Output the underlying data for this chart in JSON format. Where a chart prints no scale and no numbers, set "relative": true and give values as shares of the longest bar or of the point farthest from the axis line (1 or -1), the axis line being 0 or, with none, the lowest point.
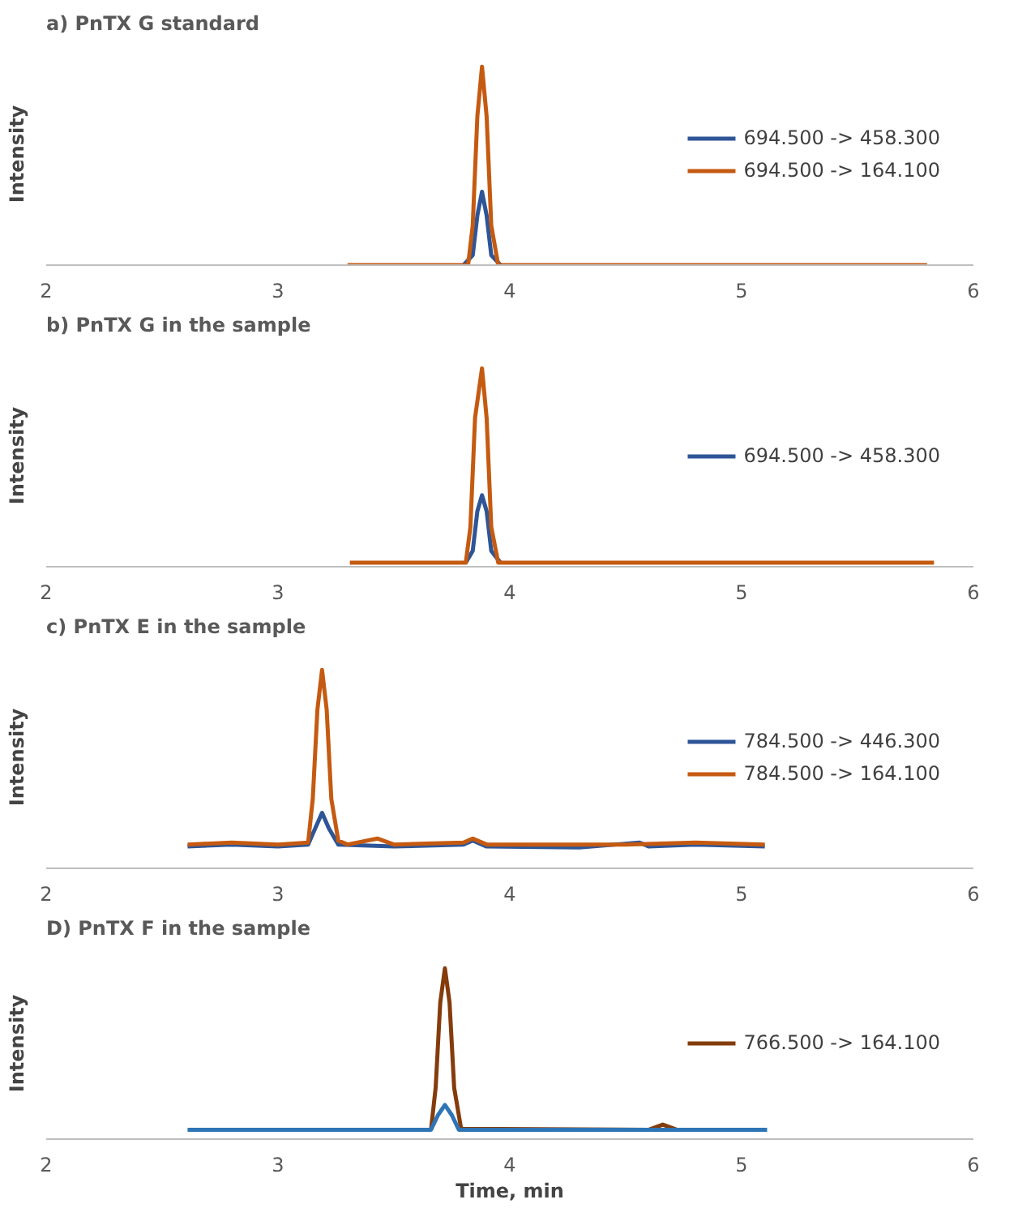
{
  "chart_data": [
    {
      "type": "line",
      "title": "a)  PnTX G standard",
      "ylabel": "Intensity",
      "xlim": [
        2,
        6
      ],
      "xticks": [
        2,
        3,
        4,
        5,
        6
      ],
      "relative": true,
      "legend": "right",
      "grid": false,
      "series": [
        {
          "name": "694.500 -> 458.300",
          "color": "#2e5597",
          "x": [
            3.8,
            3.84,
            3.86,
            3.88,
            3.9,
            3.92,
            3.96
          ],
          "values": [
            0,
            0.05,
            0.25,
            0.37,
            0.25,
            0.05,
            0
          ]
        },
        {
          "name": "694.500 -> 164.100",
          "color": "#c55a11",
          "x": [
            3.3,
            3.82,
            3.84,
            3.86,
            3.88,
            3.9,
            3.92,
            3.95,
            5.8
          ],
          "values": [
            0,
            0,
            0.2,
            0.75,
            1,
            0.75,
            0.2,
            0,
            0
          ]
        }
      ]
    },
    {
      "type": "line",
      "title": "b)  PnTX G in the sample",
      "ylabel": "Intensity",
      "xlim": [
        2,
        6
      ],
      "xticks": [
        2,
        3,
        4,
        5,
        6
      ],
      "relative": true,
      "legend": "right",
      "grid": false,
      "series": [
        {
          "name": "694.500 -> 458.300",
          "color": "#2e5597",
          "x": [
            3.81,
            3.84,
            3.86,
            3.88,
            3.9,
            3.92,
            3.96
          ],
          "values": [
            0.02,
            0.08,
            0.28,
            0.36,
            0.28,
            0.08,
            0.02
          ]
        },
        {
          "color": "#c55a11",
          "x": [
            3.31,
            3.81,
            3.83,
            3.85,
            3.88,
            3.9,
            3.92,
            3.95,
            5.83
          ],
          "values": [
            0.02,
            0.02,
            0.2,
            0.75,
            1,
            0.75,
            0.2,
            0.02,
            0.02
          ]
        }
      ]
    },
    {
      "type": "line",
      "title": "c)  PnTX E in the sample",
      "ylabel": "Intensity",
      "xlim": [
        2,
        6
      ],
      "xticks": [
        2,
        3,
        4,
        5,
        6
      ],
      "relative": true,
      "legend": "right",
      "grid": false,
      "series": [
        {
          "name": "784.500 -> 446.300",
          "color": "#2e5597",
          "x": [
            2.61,
            2.8,
            3.0,
            3.13,
            3.16,
            3.19,
            3.22,
            3.26,
            3.5,
            3.8,
            3.84,
            3.9,
            4.3,
            4.56,
            4.6,
            4.8,
            5.1
          ],
          "values": [
            0.11,
            0.12,
            0.11,
            0.12,
            0.2,
            0.28,
            0.2,
            0.12,
            0.11,
            0.12,
            0.14,
            0.11,
            0.105,
            0.13,
            0.11,
            0.12,
            0.11
          ]
        },
        {
          "name": "784.500 -> 164.100",
          "color": "#c55a11",
          "x": [
            2.61,
            2.8,
            3.0,
            3.13,
            3.15,
            3.17,
            3.19,
            3.21,
            3.23,
            3.26,
            3.3,
            3.43,
            3.5,
            3.8,
            3.84,
            3.9,
            4.5,
            4.8,
            5.1
          ],
          "values": [
            0.12,
            0.13,
            0.12,
            0.13,
            0.35,
            0.8,
            1,
            0.8,
            0.35,
            0.14,
            0.12,
            0.15,
            0.12,
            0.13,
            0.15,
            0.12,
            0.12,
            0.13,
            0.12
          ]
        }
      ]
    },
    {
      "type": "line",
      "title": "D)  PnTX F in the sample",
      "ylabel": "Intensity",
      "xlabel": "Time, min",
      "xlim": [
        2,
        6
      ],
      "xticks": [
        2,
        3,
        4,
        5,
        6
      ],
      "relative": true,
      "legend": "right",
      "grid": false,
      "series": [
        {
          "name": "766.500 -> 164.100",
          "color": "#843c0c",
          "x": [
            3.66,
            3.68,
            3.7,
            3.72,
            3.74,
            3.76,
            3.79,
            4.6,
            4.66,
            4.72
          ],
          "values": [
            0.055,
            0.3,
            0.8,
            1,
            0.8,
            0.3,
            0.06,
            0.055,
            0.085,
            0.055
          ]
        },
        {
          "color": "#2e75b6",
          "x": [
            2.61,
            3.66,
            3.69,
            3.72,
            3.75,
            3.78,
            5.11
          ],
          "values": [
            0.055,
            0.055,
            0.14,
            0.2,
            0.14,
            0.055,
            0.055
          ]
        }
      ]
    }
  ]
}
